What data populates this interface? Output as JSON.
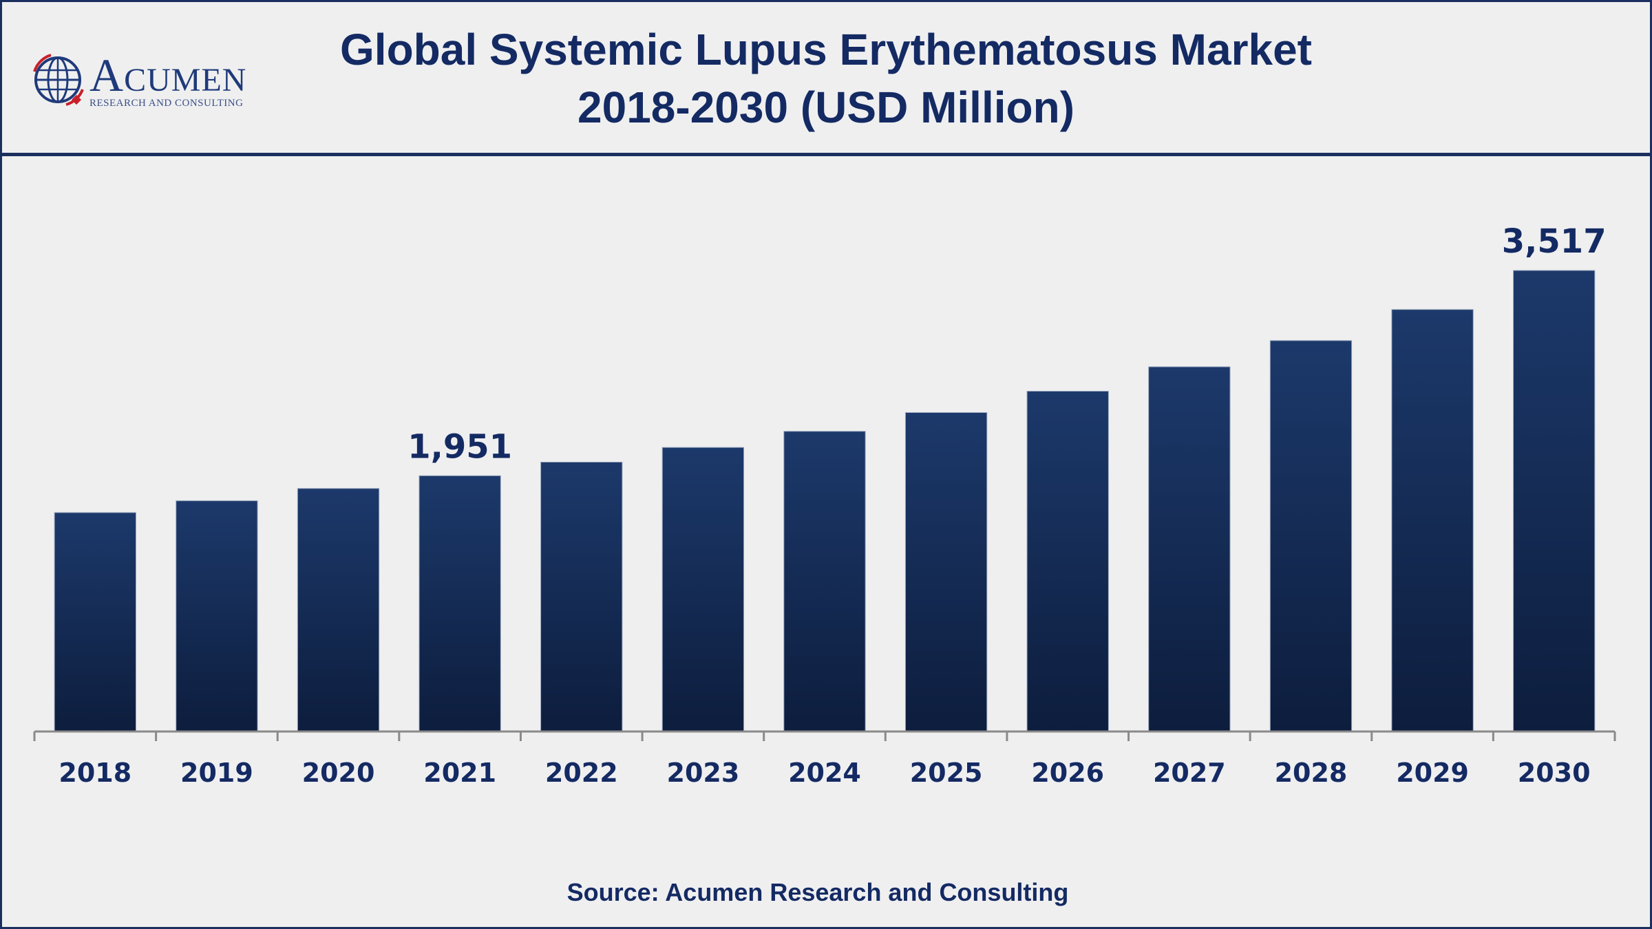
{
  "title_line1": "Global Systemic Lupus Erythematosus Market",
  "title_line2": "2018-2030 (USD Million)",
  "logo": {
    "word": "Acumen",
    "sub": "RESEARCH AND CONSULTING",
    "icon": "globe-logo-icon"
  },
  "source": "Source: Acumen Research and Consulting",
  "colors": {
    "bar_top": "#1c396b",
    "bar_bottom": "#0d1d3d",
    "text": "#142a63",
    "axis": "#8a8a8a"
  },
  "chart_data": {
    "type": "bar",
    "title": "Global Systemic Lupus Erythematosus Market 2018-2030 (USD Million)",
    "categories": [
      "2018",
      "2019",
      "2020",
      "2021",
      "2022",
      "2023",
      "2024",
      "2025",
      "2026",
      "2027",
      "2028",
      "2029",
      "2030"
    ],
    "values": [
      1670,
      1760,
      1854,
      1951,
      2055,
      2167,
      2290,
      2433,
      2596,
      2782,
      2982,
      3219,
      3517
    ],
    "data_labels": [
      {
        "index": 3,
        "text": "1,951"
      },
      {
        "index": 12,
        "text": "3,517"
      }
    ],
    "xlabel": "",
    "ylabel": "",
    "ylim": [
      0,
      3900
    ],
    "grid": false,
    "legend": "none"
  }
}
